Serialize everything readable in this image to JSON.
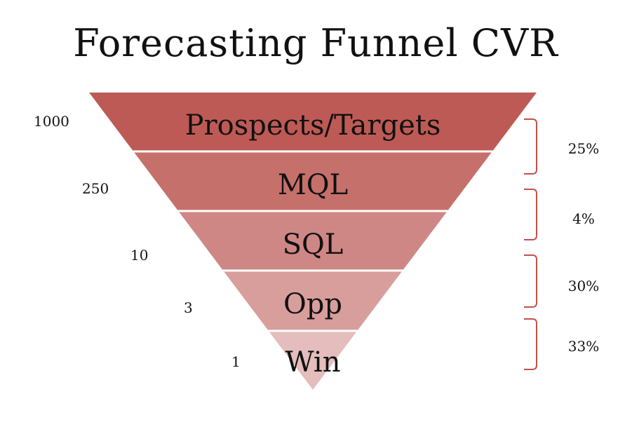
{
  "title": "Forecasting Funnel CVR",
  "stages": [
    {
      "label": "Prospects/Targets",
      "count": "1000",
      "color": "#be5a55"
    },
    {
      "label": "MQL",
      "count": "250",
      "color": "#c6706b"
    },
    {
      "label": "SQL",
      "count": "10",
      "color": "#cf8785"
    },
    {
      "label": "Opp",
      "count": "3",
      "color": "#d89e9c"
    },
    {
      "label": "Win",
      "count": "1",
      "color": "#e4bdbc"
    }
  ],
  "conversion_rates": [
    "25%",
    "4%",
    "30%",
    "33%"
  ],
  "colors": {
    "bracket": "#c0504d",
    "divider": "#ffffff"
  }
}
